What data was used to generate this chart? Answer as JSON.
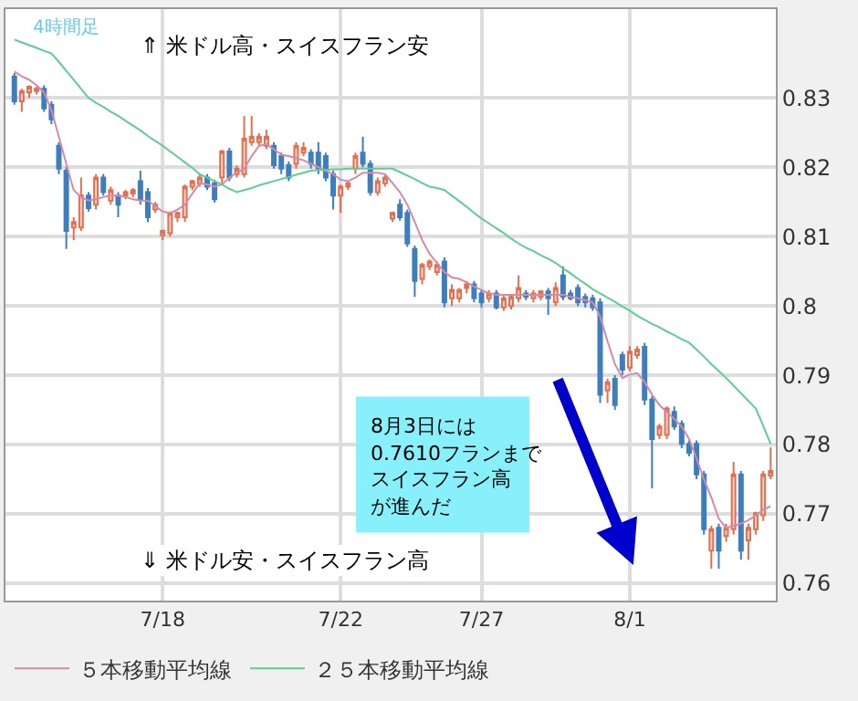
{
  "chart_data": {
    "type": "candlestick",
    "categories": [
      null,
      null,
      null,
      null,
      null,
      null,
      null,
      null,
      null,
      null,
      null,
      null,
      null,
      null,
      null,
      null,
      null,
      null,
      null,
      null,
      "7/18",
      null,
      null,
      null,
      null,
      null,
      null,
      null,
      null,
      null,
      null,
      null,
      null,
      null,
      null,
      null,
      null,
      null,
      null,
      null,
      null,
      null,
      null,
      null,
      "7/22",
      null,
      null,
      null,
      null,
      null,
      null,
      null,
      null,
      null,
      null,
      null,
      null,
      null,
      null,
      null,
      null,
      null,
      null,
      "7/27",
      null,
      null,
      null,
      null,
      null,
      null,
      null,
      null,
      null,
      null,
      null,
      null,
      null,
      null,
      null,
      null,
      null,
      null,
      null,
      "8/1",
      null,
      null,
      null,
      null,
      null,
      null,
      null,
      null,
      null,
      null,
      null,
      null,
      null,
      null,
      null,
      null,
      null,
      null,
      null
    ],
    "ohlc": [
      [
        0.8331,
        0.8336,
        0.829,
        0.8295
      ],
      [
        0.8295,
        0.8313,
        0.828,
        0.831
      ],
      [
        0.8308,
        0.8318,
        0.83,
        0.8316
      ],
      [
        0.831,
        0.8316,
        0.8305,
        0.8313
      ],
      [
        0.8313,
        0.8318,
        0.828,
        0.8285
      ],
      [
        0.829,
        0.8295,
        0.8262,
        0.8269
      ],
      [
        0.8231,
        0.8236,
        0.819,
        0.8198
      ],
      [
        0.8195,
        0.82,
        0.8082,
        0.8108
      ],
      [
        0.8113,
        0.8128,
        0.8095,
        0.8121
      ],
      [
        0.8113,
        0.8185,
        0.8108,
        0.8159
      ],
      [
        0.8159,
        0.8164,
        0.8136,
        0.8141
      ],
      [
        0.8146,
        0.819,
        0.8139,
        0.8185
      ],
      [
        0.8185,
        0.819,
        0.8159,
        0.8164
      ],
      [
        0.8152,
        0.8172,
        0.8146,
        0.8167
      ],
      [
        0.8159,
        0.8164,
        0.8128,
        0.8146
      ],
      [
        0.8159,
        0.8167,
        0.8154,
        0.8164
      ],
      [
        0.8162,
        0.817,
        0.8157,
        0.8167
      ],
      [
        0.818,
        0.8195,
        0.8146,
        0.8154
      ],
      [
        0.8164,
        0.817,
        0.8121,
        0.8128
      ],
      [
        0.8139,
        0.815,
        0.8134,
        0.8146
      ],
      [
        0.8102,
        0.811,
        0.8095,
        0.8108
      ],
      [
        0.8105,
        0.8136,
        0.81,
        0.8134
      ],
      [
        0.8128,
        0.8136,
        0.8121,
        0.8134
      ],
      [
        0.8128,
        0.8175,
        0.8121,
        0.8172
      ],
      [
        0.8172,
        0.8182,
        0.8167,
        0.818
      ],
      [
        0.8177,
        0.819,
        0.8172,
        0.8185
      ],
      [
        0.8185,
        0.819,
        0.8167,
        0.8172
      ],
      [
        0.8177,
        0.8182,
        0.8149,
        0.8154
      ],
      [
        0.8185,
        0.8225,
        0.8177,
        0.8223
      ],
      [
        0.8223,
        0.8228,
        0.818,
        0.8185
      ],
      [
        0.819,
        0.8203,
        0.8185,
        0.8198
      ],
      [
        0.819,
        0.8274,
        0.8185,
        0.8241
      ],
      [
        0.8236,
        0.8274,
        0.8231,
        0.8244
      ],
      [
        0.8236,
        0.8249,
        0.8231,
        0.8244
      ],
      [
        0.8231,
        0.8254,
        0.8226,
        0.8244
      ],
      [
        0.8231,
        0.8236,
        0.8198,
        0.8203
      ],
      [
        0.8216,
        0.8221,
        0.819,
        0.8198
      ],
      [
        0.8203,
        0.8208,
        0.818,
        0.8185
      ],
      [
        0.8205,
        0.8236,
        0.8198,
        0.8231
      ],
      [
        0.8221,
        0.8236,
        0.8216,
        0.8228
      ],
      [
        0.8221,
        0.8226,
        0.8198,
        0.8205
      ],
      [
        0.8221,
        0.8236,
        0.819,
        0.8198
      ],
      [
        0.8216,
        0.8221,
        0.818,
        0.8185
      ],
      [
        0.819,
        0.8195,
        0.8139,
        0.8159
      ],
      [
        0.8159,
        0.8175,
        0.8134,
        0.8172
      ],
      [
        0.8172,
        0.818,
        0.8167,
        0.8177
      ],
      [
        0.8198,
        0.8221,
        0.819,
        0.8216
      ],
      [
        0.8221,
        0.8244,
        0.82,
        0.8205
      ],
      [
        0.8205,
        0.821,
        0.8159,
        0.8164
      ],
      [
        0.8164,
        0.8185,
        0.8159,
        0.818
      ],
      [
        0.8177,
        0.819,
        0.8172,
        0.8185
      ],
      [
        0.8126,
        0.8136,
        0.8121,
        0.8134
      ],
      [
        0.8146,
        0.8154,
        0.8123,
        0.8128
      ],
      [
        0.8134,
        0.8139,
        0.8085,
        0.809
      ],
      [
        0.8082,
        0.8087,
        0.8013,
        0.8036
      ],
      [
        0.8039,
        0.8062,
        0.8031,
        0.8059
      ],
      [
        0.8057,
        0.8067,
        0.8052,
        0.8064
      ],
      [
        0.8049,
        0.8064,
        0.8044,
        0.8059
      ],
      [
        0.8064,
        0.807,
        0.7998,
        0.8005
      ],
      [
        0.8011,
        0.8031,
        0.8,
        0.8023
      ],
      [
        0.8011,
        0.8026,
        0.8005,
        0.8023
      ],
      [
        0.8026,
        0.8036,
        0.8018,
        0.8031
      ],
      [
        0.8031,
        0.8036,
        0.8005,
        0.8011
      ],
      [
        0.8018,
        0.8023,
        0.7998,
        0.8005
      ],
      [
        0.8011,
        0.8023,
        0.8005,
        0.8018
      ],
      [
        0.8018,
        0.8023,
        0.7995,
        0.7998
      ],
      [
        0.7998,
        0.8016,
        0.7993,
        0.8011
      ],
      [
        0.8,
        0.8016,
        0.7995,
        0.8013
      ],
      [
        0.8011,
        0.8044,
        0.8005,
        0.8026
      ],
      [
        0.8018,
        0.8023,
        0.8008,
        0.8013
      ],
      [
        0.8011,
        0.8023,
        0.8005,
        0.8018
      ],
      [
        0.8013,
        0.8023,
        0.8008,
        0.8021
      ],
      [
        0.8021,
        0.8026,
        0.7987,
        0.8011
      ],
      [
        0.8005,
        0.8034,
        0.8,
        0.8026
      ],
      [
        0.8044,
        0.8057,
        0.8008,
        0.8013
      ],
      [
        0.8018,
        0.8023,
        0.8008,
        0.8011
      ],
      [
        0.8026,
        0.8031,
        0.8,
        0.8005
      ],
      [
        0.8013,
        0.8018,
        0.7998,
        0.8005
      ],
      [
        0.8011,
        0.8016,
        0.7993,
        0.7998
      ],
      [
        0.8005,
        0.8011,
        0.786,
        0.7872
      ],
      [
        0.7878,
        0.7895,
        0.786,
        0.789
      ],
      [
        0.7895,
        0.79,
        0.785,
        0.7857
      ],
      [
        0.7929,
        0.7934,
        0.79,
        0.7908
      ],
      [
        0.7911,
        0.7942,
        0.7906,
        0.7934
      ],
      [
        0.7929,
        0.7942,
        0.7924,
        0.7937
      ],
      [
        0.7941,
        0.7947,
        0.7857,
        0.7865
      ],
      [
        0.7865,
        0.787,
        0.7737,
        0.7808
      ],
      [
        0.7814,
        0.783,
        0.7808,
        0.7826
      ],
      [
        0.7814,
        0.7855,
        0.7808,
        0.7852
      ],
      [
        0.7847,
        0.7855,
        0.7821,
        0.7826
      ],
      [
        0.783,
        0.7835,
        0.7795,
        0.7801
      ],
      [
        0.7801,
        0.7806,
        0.7783,
        0.7788
      ],
      [
        0.7801,
        0.7806,
        0.775,
        0.7757
      ],
      [
        0.7757,
        0.7762,
        0.767,
        0.7678
      ],
      [
        0.7647,
        0.7683,
        0.7621,
        0.7678
      ],
      [
        0.768,
        0.7686,
        0.7621,
        0.7647
      ],
      [
        0.7668,
        0.7686,
        0.766,
        0.768
      ],
      [
        0.7678,
        0.7775,
        0.767,
        0.7757
      ],
      [
        0.7757,
        0.7762,
        0.7634,
        0.7647
      ],
      [
        0.7662,
        0.7686,
        0.7634,
        0.768
      ],
      [
        0.7678,
        0.7703,
        0.767,
        0.7701
      ],
      [
        0.7698,
        0.7762,
        0.769,
        0.7757
      ],
      [
        0.7755,
        0.7796,
        0.775,
        0.7762
      ]
    ],
    "series": [
      {
        "type": "line",
        "name": "５本移動平均線",
        "color": "#d48aa8",
        "values": [
          0.8338,
          0.8331,
          0.8326,
          0.8318,
          0.8308,
          0.8282,
          0.8244,
          0.8205,
          0.8167,
          0.8157,
          0.8152,
          0.8154,
          0.8157,
          0.8159,
          0.8159,
          0.8157,
          0.8154,
          0.8152,
          0.8152,
          0.8144,
          0.8136,
          0.8134,
          0.8139,
          0.8146,
          0.8162,
          0.8177,
          0.8175,
          0.8172,
          0.8175,
          0.8185,
          0.8192,
          0.8198,
          0.8216,
          0.8231,
          0.8233,
          0.8226,
          0.8218,
          0.8216,
          0.8213,
          0.821,
          0.8205,
          0.82,
          0.8195,
          0.819,
          0.8182,
          0.818,
          0.8185,
          0.8192,
          0.8192,
          0.8192,
          0.819,
          0.8177,
          0.8164,
          0.8146,
          0.8121,
          0.8095,
          0.8075,
          0.8062,
          0.8049,
          0.8041,
          0.8039,
          0.8034,
          0.8028,
          0.8023,
          0.8018,
          0.8016,
          0.8016,
          0.8016,
          0.8016,
          0.8016,
          0.8016,
          0.8016,
          0.8016,
          0.8016,
          0.8016,
          0.8013,
          0.8011,
          0.8008,
          0.8005,
          0.7985,
          0.7949,
          0.7916,
          0.7896,
          0.7901,
          0.7903,
          0.789,
          0.7872,
          0.7857,
          0.7847,
          0.7837,
          0.7826,
          0.7808,
          0.778,
          0.775,
          0.7724,
          0.7693,
          0.768,
          0.7683,
          0.7686,
          0.7691,
          0.7698,
          0.7706,
          0.7711
        ]
      },
      {
        "type": "line",
        "name": "２５本移動平均線",
        "color": "#5ccf92",
        "values": [
          0.8384,
          0.838,
          0.8376,
          0.8372,
          0.8368,
          0.8364,
          0.8352,
          0.8339,
          0.8326,
          0.8313,
          0.83,
          0.8293,
          0.8287,
          0.828,
          0.8274,
          0.8267,
          0.826,
          0.8253,
          0.8245,
          0.8238,
          0.8231,
          0.8223,
          0.8215,
          0.8207,
          0.8199,
          0.819,
          0.8185,
          0.818,
          0.8175,
          0.8169,
          0.8164,
          0.8167,
          0.817,
          0.8174,
          0.8177,
          0.818,
          0.8183,
          0.8186,
          0.8189,
          0.8192,
          0.8195,
          0.8196,
          0.8196,
          0.8197,
          0.8197,
          0.8198,
          0.8198,
          0.8198,
          0.8198,
          0.8198,
          0.8198,
          0.8198,
          0.8193,
          0.8188,
          0.8183,
          0.8177,
          0.8172,
          0.817,
          0.8167,
          0.8159,
          0.8151,
          0.8143,
          0.8134,
          0.8126,
          0.8119,
          0.8112,
          0.8105,
          0.8097,
          0.809,
          0.8084,
          0.8079,
          0.8073,
          0.8068,
          0.8062,
          0.8054,
          0.8047,
          0.8039,
          0.8032,
          0.8024,
          0.8018,
          0.8012,
          0.8006,
          0.7999,
          0.7993,
          0.7986,
          0.798,
          0.7974,
          0.7969,
          0.7963,
          0.7958,
          0.7952,
          0.7947,
          0.7937,
          0.7927,
          0.7916,
          0.7906,
          0.7896,
          0.7885,
          0.7874,
          0.7863,
          0.7852,
          0.7827,
          0.7801
        ]
      }
    ],
    "ylim": [
      0.7575,
      0.8428
    ],
    "yticks": [
      0.76,
      0.77,
      0.78,
      0.79,
      0.8,
      0.81,
      0.82,
      0.83
    ],
    "grid": true,
    "legend": "bottom",
    "annotations": [
      "4時間足",
      "⇑ 米ドル高・スイスフラン安",
      "⇓ 米ドル安・スイスフラン高",
      "8月3日には",
      "0.7610フランまで",
      "スイスフラン高",
      "が進んだ"
    ]
  }
}
